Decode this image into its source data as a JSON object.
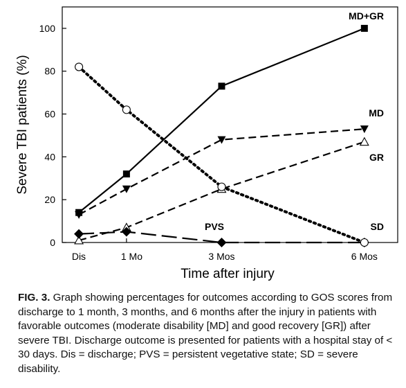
{
  "chart_data": {
    "type": "line",
    "title": "",
    "xlabel": "Time after injury",
    "ylabel": "Severe TBI patients (%)",
    "ylim": [
      0,
      110
    ],
    "xlim": [
      -0.35,
      6.7
    ],
    "yticks": [
      0,
      20,
      40,
      60,
      80,
      100
    ],
    "xticks": [
      {
        "value": 0,
        "label": "Dis"
      },
      {
        "value": 1,
        "label": "1 Mo"
      },
      {
        "value": 3,
        "label": "3 Mos"
      },
      {
        "value": 6,
        "label": "6 Mos"
      }
    ],
    "grid": false,
    "series": [
      {
        "name": "MD+GR",
        "marker": "square-filled",
        "line": "solid",
        "x": [
          0,
          1,
          3,
          6
        ],
        "values": [
          14,
          32,
          73,
          100
        ]
      },
      {
        "name": "MD",
        "marker": "triangle-down-filled",
        "line": "dashed",
        "x": [
          0,
          1,
          3,
          6
        ],
        "values": [
          13,
          25,
          48,
          53
        ]
      },
      {
        "name": "GR",
        "marker": "triangle-up-open",
        "line": "dashed",
        "x": [
          0,
          1,
          3,
          6
        ],
        "values": [
          1,
          7,
          25,
          47
        ]
      },
      {
        "name": "PVS",
        "marker": "diamond-filled",
        "line": "long-dashed",
        "x": [
          0,
          1,
          3,
          6
        ],
        "values": [
          4,
          5,
          0,
          0
        ]
      },
      {
        "name": "SD",
        "marker": "circle-open",
        "line": "dotted",
        "x": [
          0,
          1,
          3,
          6
        ],
        "values": [
          82,
          62,
          26,
          0
        ]
      }
    ]
  },
  "caption": {
    "fig_label": "FIG. 3.",
    "text": "Graph showing percentages for outcomes according to GOS scores from discharge to 1 month, 3 months, and 6 months after the injury in patients with favorable outcomes (moderate disability [MD] and good recovery [GR]) after severe TBI. Discharge outcome is presented for patients with a hospital stay of < 30 days. Dis = discharge; PVS = persistent vegetative state; SD = severe disability."
  }
}
